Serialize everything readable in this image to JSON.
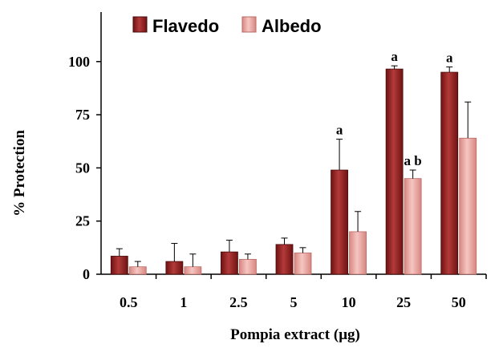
{
  "chart_data": {
    "type": "bar",
    "title": "",
    "xlabel": "Pompia extract (μg)",
    "ylabel": "% Protection",
    "categories": [
      "0.5",
      "1",
      "2.5",
      "5",
      "10",
      "25",
      "50"
    ],
    "ylim": [
      0,
      125
    ],
    "yticks": [
      "0",
      "25",
      "50",
      "75",
      "100"
    ],
    "legend_position": "top-left",
    "grid": false,
    "error_bars": "upper only",
    "series": [
      {
        "name": "Flavedo",
        "color": "#8b1a1a",
        "values": [
          8.5,
          6,
          10.5,
          14,
          49,
          96.5,
          95
        ],
        "error_upper": [
          3.5,
          8.5,
          5.5,
          3,
          14.5,
          1.5,
          2.5
        ],
        "annotations": [
          "",
          "",
          "",
          "",
          "a",
          "a",
          "a"
        ]
      },
      {
        "name": "Albedo",
        "color": "#e49a95",
        "values": [
          3.5,
          3.5,
          7,
          10,
          20,
          45,
          64
        ],
        "error_upper": [
          2.5,
          6,
          2.5,
          2.5,
          9.5,
          4,
          17
        ],
        "annotations": [
          "",
          "",
          "",
          "",
          "",
          "a  b",
          ""
        ]
      }
    ]
  }
}
